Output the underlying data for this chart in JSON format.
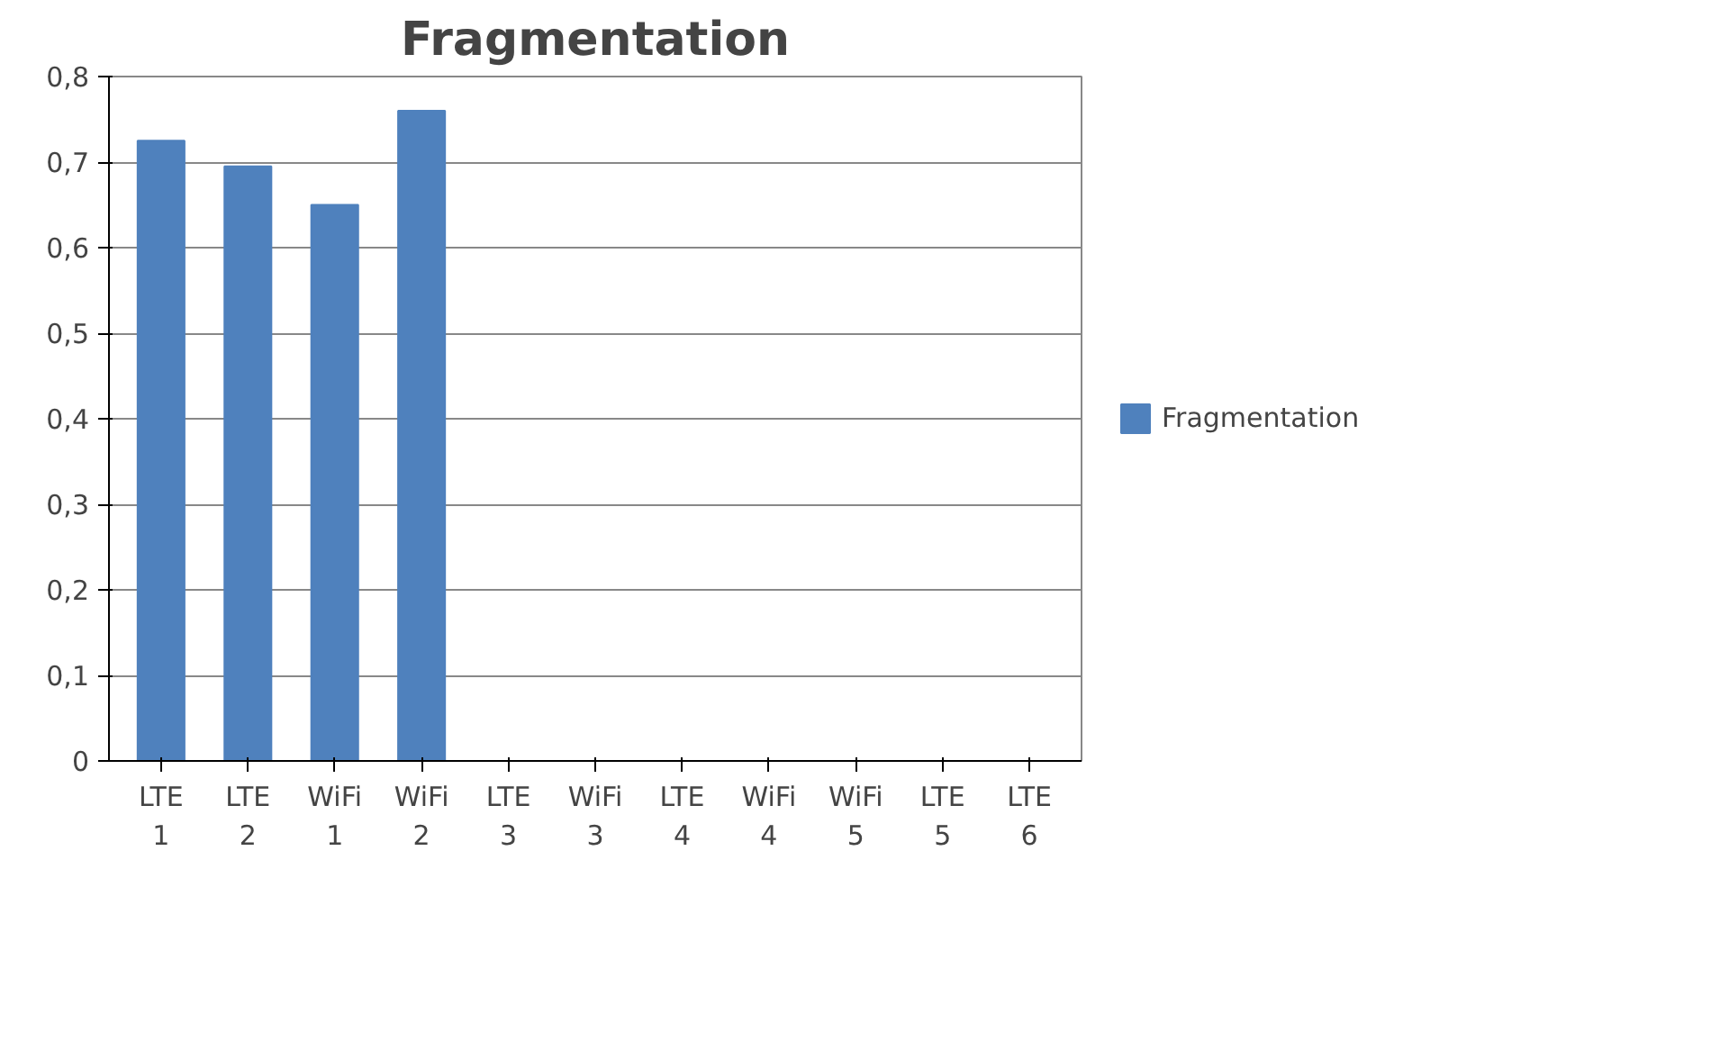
{
  "chart_data": {
    "type": "bar",
    "title": "Fragmentation",
    "categories": [
      "LTE 1",
      "LTE 2",
      "WiFi 1",
      "WiFi 2",
      "LTE 3",
      "WiFi 3",
      "LTE 4",
      "WiFi 4",
      "WiFi 5",
      "LTE 5",
      "LTE 6"
    ],
    "series": [
      {
        "name": "Fragmentation",
        "color": "#4f81bd",
        "values": [
          0.725,
          0.695,
          0.65,
          0.76,
          0,
          0,
          0,
          0,
          0,
          0,
          0
        ]
      }
    ],
    "ylim": [
      0,
      0.8
    ],
    "yticks": [
      {
        "value": 0,
        "label": "0"
      },
      {
        "value": 0.1,
        "label": "0,1"
      },
      {
        "value": 0.2,
        "label": "0,2"
      },
      {
        "value": 0.3,
        "label": "0,3"
      },
      {
        "value": 0.4,
        "label": "0,4"
      },
      {
        "value": 0.5,
        "label": "0,5"
      },
      {
        "value": 0.6,
        "label": "0,6"
      },
      {
        "value": 0.7,
        "label": "0,7"
      },
      {
        "value": 0.8,
        "label": "0,8"
      }
    ],
    "grid": "y",
    "legend": "right"
  }
}
